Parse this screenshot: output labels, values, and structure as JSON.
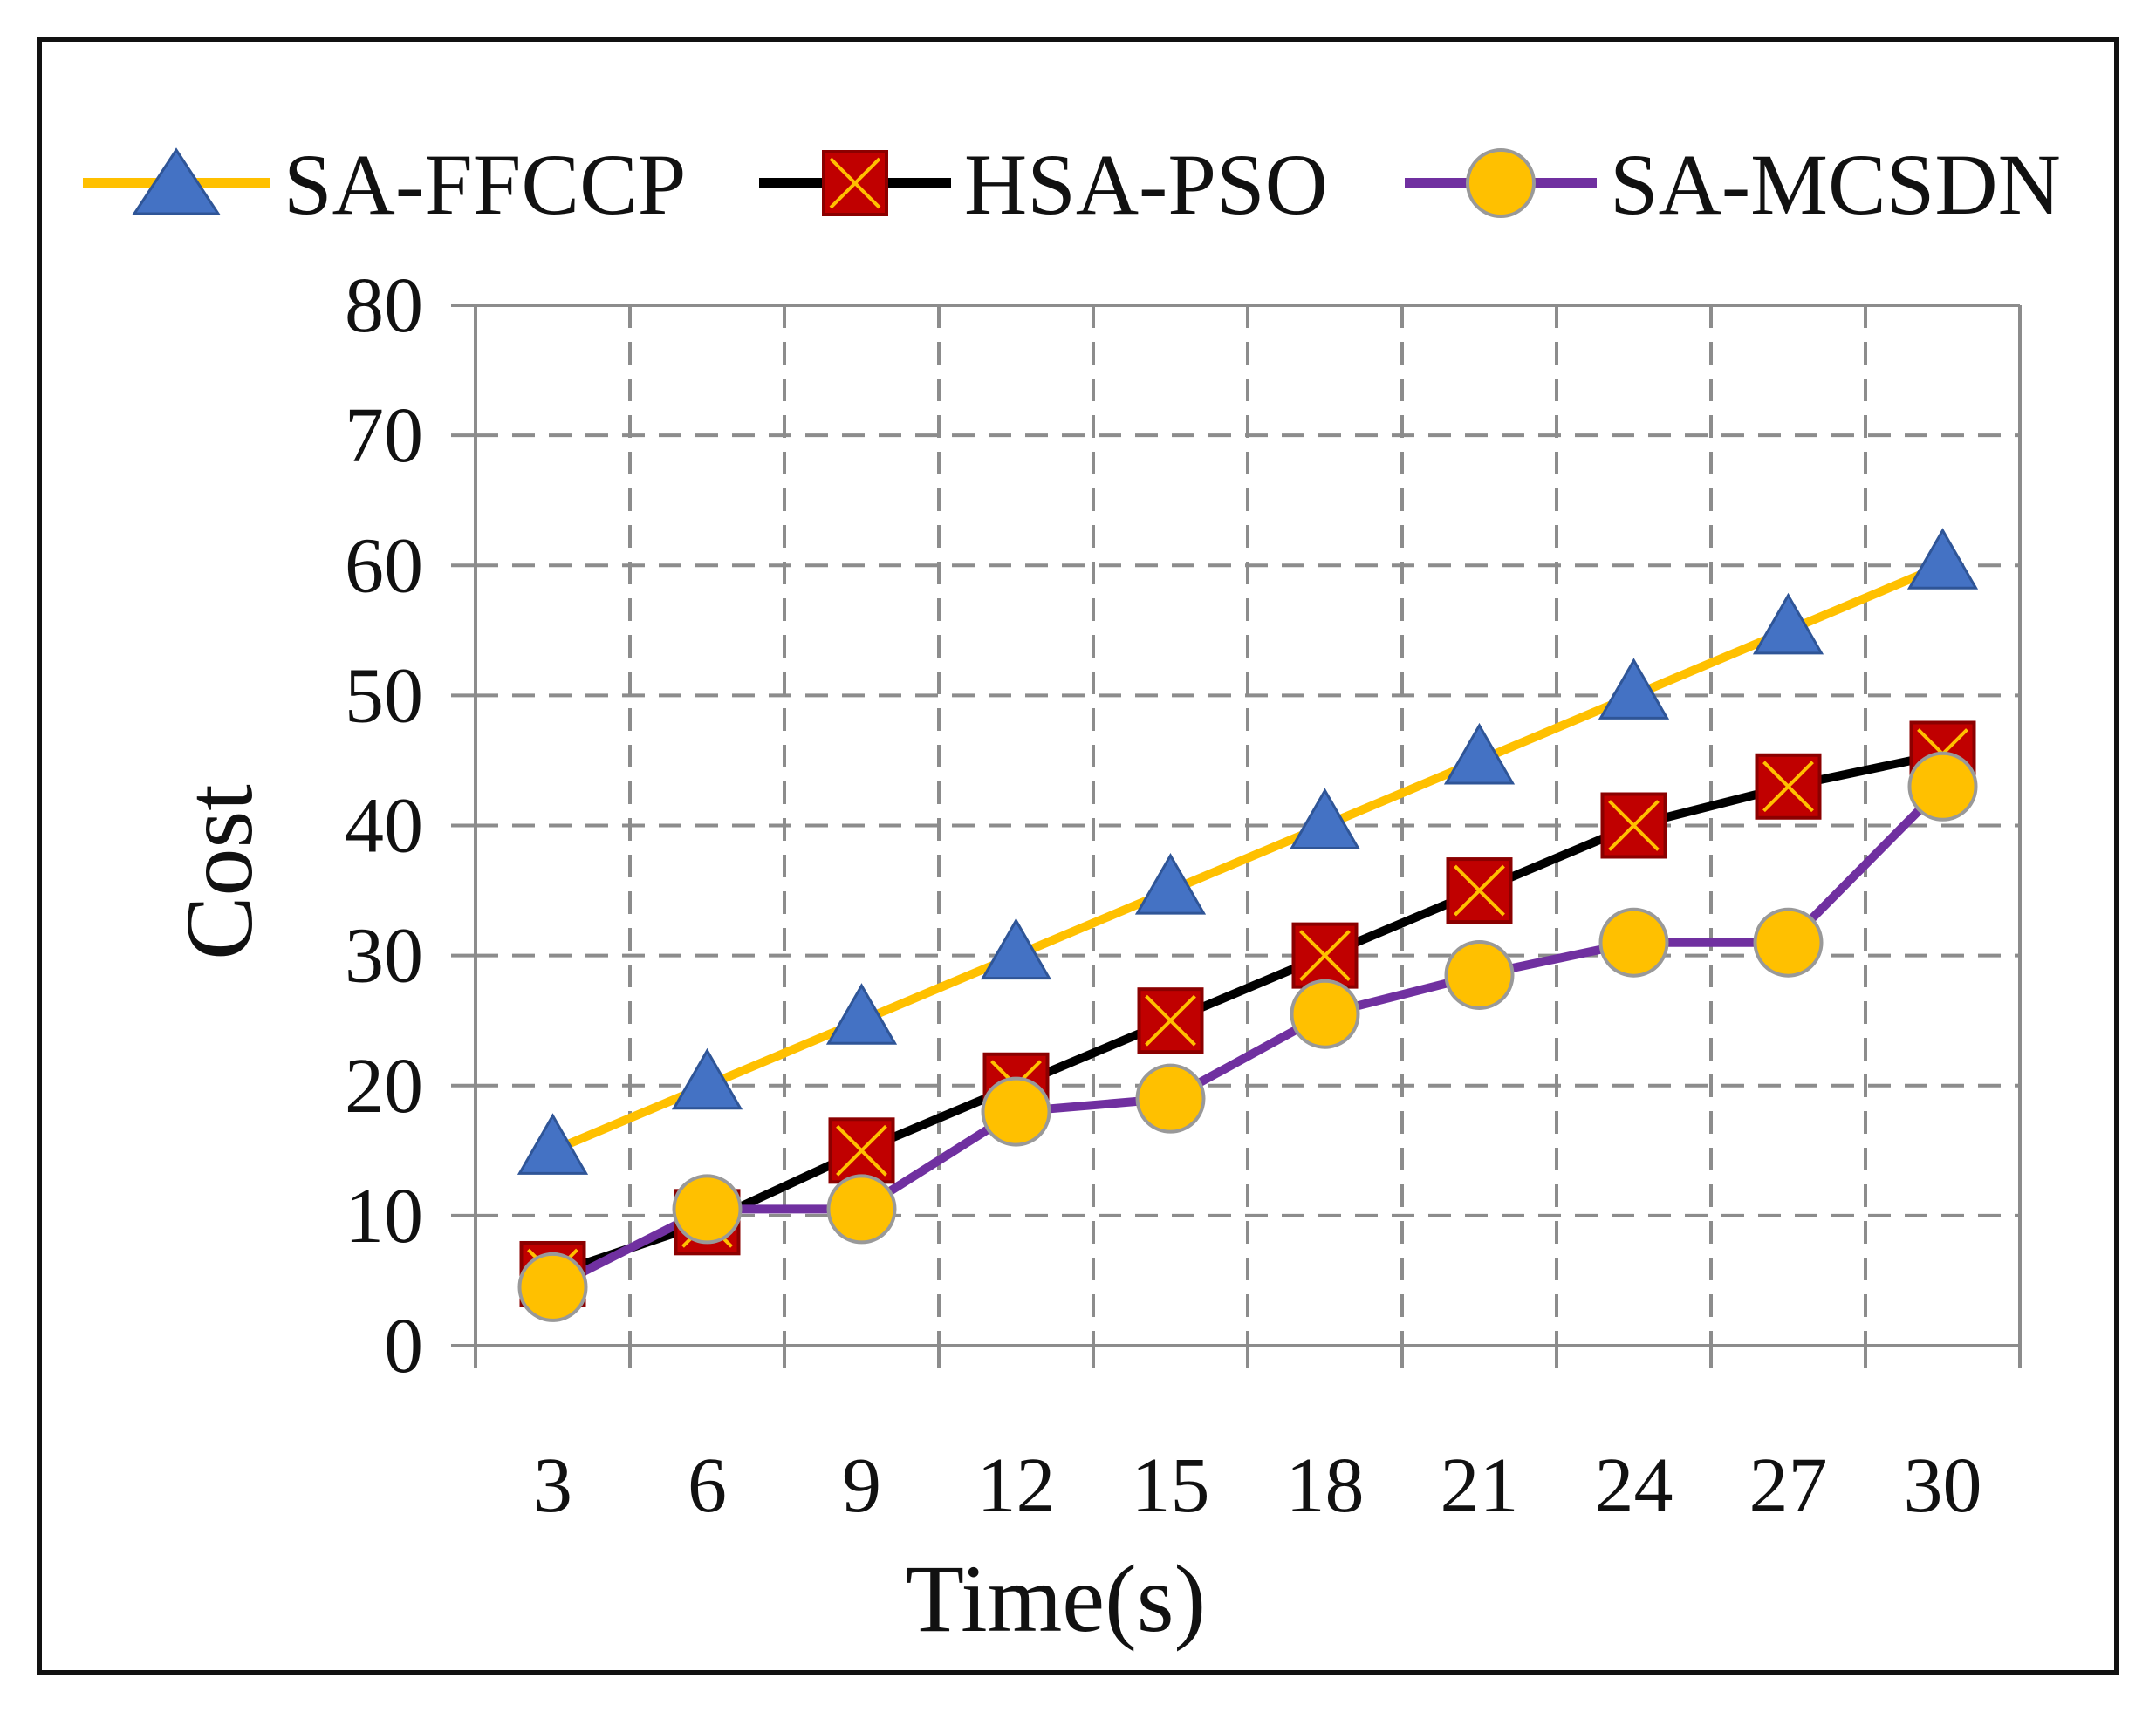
{
  "chart_data": {
    "type": "line",
    "title": "",
    "xlabel": "Time(s)",
    "ylabel": "Cost",
    "categories": [
      "3",
      "6",
      "9",
      "12",
      "15",
      "18",
      "21",
      "24",
      "27",
      "30"
    ],
    "ylim": [
      0,
      80
    ],
    "yticks": [
      "0",
      "10",
      "20",
      "30",
      "40",
      "50",
      "60",
      "70",
      "80"
    ],
    "grid": "dashed",
    "legend_position": "top",
    "series": [
      {
        "name": "SA-FFCCP",
        "values": [
          15,
          20,
          25,
          30,
          35,
          40,
          45,
          50,
          55,
          60
        ],
        "line_color": "#FFC000",
        "marker": "triangle",
        "marker_color": "#4472C4"
      },
      {
        "name": "HSA-PSO",
        "values": [
          5.5,
          9.5,
          15,
          20,
          25,
          30,
          35,
          40,
          43,
          45.5
        ],
        "line_color": "#000000",
        "marker": "square-x",
        "marker_color": "#C00000"
      },
      {
        "name": "SA-MCSDN",
        "values": [
          4.5,
          10.5,
          10.5,
          18,
          19,
          25.5,
          28.5,
          31,
          31,
          43
        ],
        "line_color": "#7030A0",
        "marker": "circle",
        "marker_color": "#FFC000"
      }
    ]
  }
}
